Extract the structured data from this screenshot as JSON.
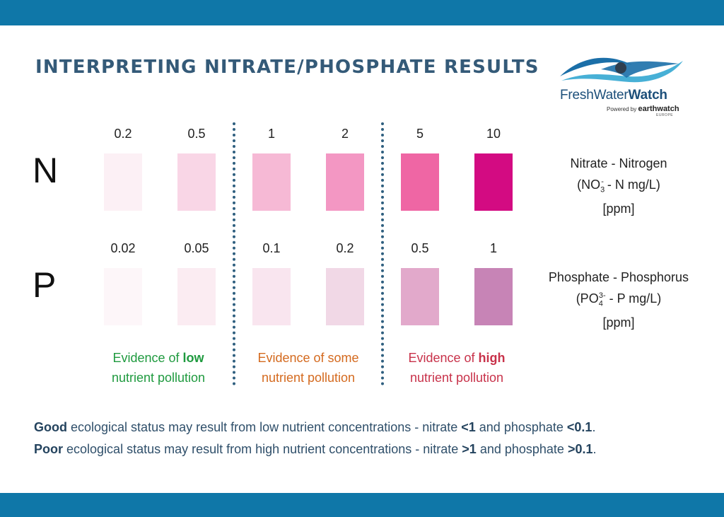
{
  "title": "INTERPRETING NITRATE/PHOSPHATE RESULTS",
  "logo": {
    "brand_regular": "FreshWater",
    "brand_bold": "Watch",
    "powered_by": "Powered by",
    "earthwatch": "earthwatch",
    "region": "EUROPE",
    "wave_colors": [
      "#1b6fa8",
      "#47b0d6",
      "#2f3e4e"
    ]
  },
  "colors": {
    "band": "#0f77a8",
    "title": "#345a78",
    "divider": "#2f5f7f"
  },
  "nitrate": {
    "letter": "N",
    "values": [
      "0.2",
      "0.5",
      "1",
      "2",
      "5",
      "10"
    ],
    "swatch_colors": [
      "#fcf0f5",
      "#f9d6e6",
      "#f6b9d5",
      "#f397c3",
      "#ef66a4",
      "#d30b82"
    ],
    "unit": {
      "line1": "Nitrate - Nitrogen",
      "line2_pre": "(NO",
      "line2_sub": "3",
      "line2_sup": "-",
      "line2_post": " - N mg/L)",
      "line3": "[ppm]"
    }
  },
  "phosphate": {
    "letter": "P",
    "values": [
      "0.02",
      "0.05",
      "0.1",
      "0.2",
      "0.5",
      "1"
    ],
    "swatch_colors": [
      "#fdf6f9",
      "#fbecf2",
      "#f9e5ef",
      "#f1d8e6",
      "#e2a9cb",
      "#c784b6"
    ],
    "unit": {
      "line1": "Phosphate - Phosphorus",
      "line2_pre": "(PO",
      "line2_sub": "4",
      "line2_sup": "3-",
      "line2_post": " - P mg/L)",
      "line3": "[ppm]"
    }
  },
  "evidence": {
    "low": {
      "pre": "Evidence of ",
      "bold": "low",
      "line2": "nutrient pollution"
    },
    "some": {
      "line1": "Evidence of some",
      "line2": "nutrient pollution"
    },
    "high": {
      "pre": "Evidence of ",
      "bold": "high",
      "line2": "nutrient pollution"
    },
    "colors": {
      "low": "#1f9a3f",
      "some": "#d46a1f",
      "high": "#c8324a"
    }
  },
  "status": {
    "good": {
      "bold": "Good",
      "text": " ecological status may result from low nutrient concentrations - nitrate ",
      "nitrate": "<1",
      "mid": " and phosphate ",
      "phosphate": "<0.1",
      "end": "."
    },
    "poor": {
      "bold": "Poor",
      "text": " ecological status may result from high nutrient concentrations - nitrate ",
      "nitrate": ">1",
      "mid": " and phosphate ",
      "phosphate": ">0.1",
      "end": "."
    }
  }
}
